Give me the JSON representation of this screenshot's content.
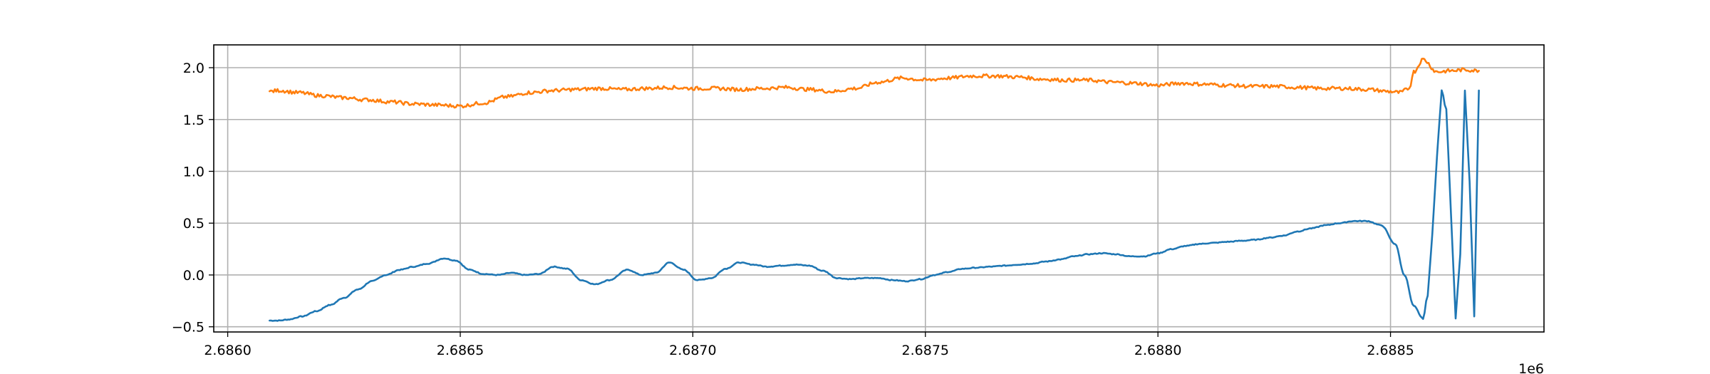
{
  "chart_data": {
    "type": "line",
    "title": "",
    "xlabel": "",
    "ylabel": "",
    "x_offset_label": "1e6",
    "xlim": [
      2.68597,
      2.68883
    ],
    "ylim": [
      -0.55,
      2.22
    ],
    "x_ticks": [
      2.686,
      2.6865,
      2.687,
      2.6875,
      2.688,
      2.6885
    ],
    "x_tick_labels": [
      "2.6860",
      "2.6865",
      "2.6870",
      "2.6875",
      "2.6880",
      "2.6885"
    ],
    "y_ticks": [
      -0.5,
      0.0,
      0.5,
      1.0,
      1.5,
      2.0
    ],
    "y_tick_labels": [
      "−0.5",
      "0.0",
      "0.5",
      "1.0",
      "1.5",
      "2.0"
    ],
    "grid": true,
    "legend": "none",
    "series": [
      {
        "color": "#1f77b4",
        "x": [
          2.68609,
          2.68611,
          2.68613,
          2.68616,
          2.68619,
          2.68622,
          2.68625,
          2.68628,
          2.68631,
          2.68634,
          2.68637,
          2.6864,
          2.68643,
          2.686465,
          2.68649,
          2.68652,
          2.68655,
          2.68658,
          2.68661,
          2.68664,
          2.68667,
          2.6867,
          2.68673,
          2.68676,
          2.68679,
          2.68682,
          2.68686,
          2.68689,
          2.68692,
          2.68695,
          2.68698,
          2.68701,
          2.68704,
          2.68707,
          2.6871,
          2.68713,
          2.68716,
          2.68719,
          2.68722,
          2.68725,
          2.68728,
          2.68731,
          2.68734,
          2.68737,
          2.6874,
          2.68743,
          2.68746,
          2.68749,
          2.68752,
          2.68755,
          2.68758,
          2.68761,
          2.68764,
          2.68767,
          2.6877,
          2.68773,
          2.68776,
          2.68779,
          2.68782,
          2.68785,
          2.68788,
          2.68791,
          2.68794,
          2.68797,
          2.688,
          2.68803,
          2.68806,
          2.68809,
          2.68812,
          2.68815,
          2.68818,
          2.68821,
          2.68824,
          2.68827,
          2.6883,
          2.68833,
          2.68836,
          2.68839,
          2.68842,
          2.68845,
          2.68848,
          2.68851,
          2.68853,
          2.68855,
          2.68857,
          2.68858,
          2.68859,
          2.6886,
          2.68861,
          2.68862,
          2.68863,
          2.68864,
          2.68865,
          2.68866,
          2.68867,
          2.68868,
          2.68869
        ],
        "y": [
          -0.44,
          -0.44,
          -0.43,
          -0.4,
          -0.35,
          -0.29,
          -0.22,
          -0.14,
          -0.06,
          0.0,
          0.05,
          0.08,
          0.11,
          0.16,
          0.14,
          0.05,
          0.01,
          0.0,
          0.02,
          0.0,
          0.01,
          0.08,
          0.06,
          -0.05,
          -0.09,
          -0.05,
          0.05,
          0.0,
          0.02,
          0.12,
          0.05,
          -0.05,
          -0.03,
          0.06,
          0.12,
          0.1,
          0.08,
          0.09,
          0.1,
          0.09,
          0.04,
          -0.03,
          -0.04,
          -0.03,
          -0.03,
          -0.05,
          -0.06,
          -0.04,
          0.0,
          0.03,
          0.06,
          0.07,
          0.08,
          0.09,
          0.1,
          0.11,
          0.13,
          0.15,
          0.18,
          0.2,
          0.21,
          0.2,
          0.18,
          0.18,
          0.21,
          0.25,
          0.28,
          0.3,
          0.31,
          0.32,
          0.33,
          0.34,
          0.36,
          0.38,
          0.42,
          0.45,
          0.48,
          0.5,
          0.52,
          0.52,
          0.48,
          0.3,
          0.0,
          -0.3,
          -0.42,
          -0.2,
          0.4,
          1.15,
          1.78,
          1.6,
          0.6,
          -0.42,
          0.2,
          1.78,
          0.9,
          -0.4,
          1.78
        ]
      },
      {
        "color": "#ff7f0e",
        "x": [
          2.68609,
          2.68611,
          2.68615,
          2.6862,
          2.68625,
          2.6863,
          2.68635,
          2.6864,
          2.68645,
          2.6865,
          2.68655,
          2.6866,
          2.68665,
          2.6867,
          2.68675,
          2.6868,
          2.68685,
          2.6869,
          2.68695,
          2.687,
          2.68705,
          2.6871,
          2.68715,
          2.6872,
          2.68725,
          2.6873,
          2.68735,
          2.6874,
          2.68745,
          2.6875,
          2.68755,
          2.6876,
          2.68765,
          2.6877,
          2.68775,
          2.6878,
          2.68785,
          2.6879,
          2.68795,
          2.688,
          2.68805,
          2.6881,
          2.68815,
          2.6882,
          2.68825,
          2.6883,
          2.68835,
          2.6884,
          2.68845,
          2.6885,
          2.68852,
          2.68854,
          2.68855,
          2.68857,
          2.6886,
          2.68863,
          2.68866,
          2.68869
        ],
        "y": [
          1.77,
          1.78,
          1.76,
          1.73,
          1.71,
          1.69,
          1.67,
          1.65,
          1.64,
          1.63,
          1.66,
          1.72,
          1.76,
          1.78,
          1.79,
          1.8,
          1.79,
          1.8,
          1.81,
          1.8,
          1.8,
          1.79,
          1.8,
          1.81,
          1.79,
          1.77,
          1.8,
          1.86,
          1.9,
          1.88,
          1.9,
          1.92,
          1.92,
          1.91,
          1.89,
          1.88,
          1.88,
          1.86,
          1.85,
          1.83,
          1.85,
          1.84,
          1.83,
          1.82,
          1.82,
          1.81,
          1.8,
          1.8,
          1.79,
          1.77,
          1.76,
          1.8,
          1.96,
          2.08,
          1.96,
          1.97,
          1.98,
          1.97
        ]
      }
    ]
  }
}
